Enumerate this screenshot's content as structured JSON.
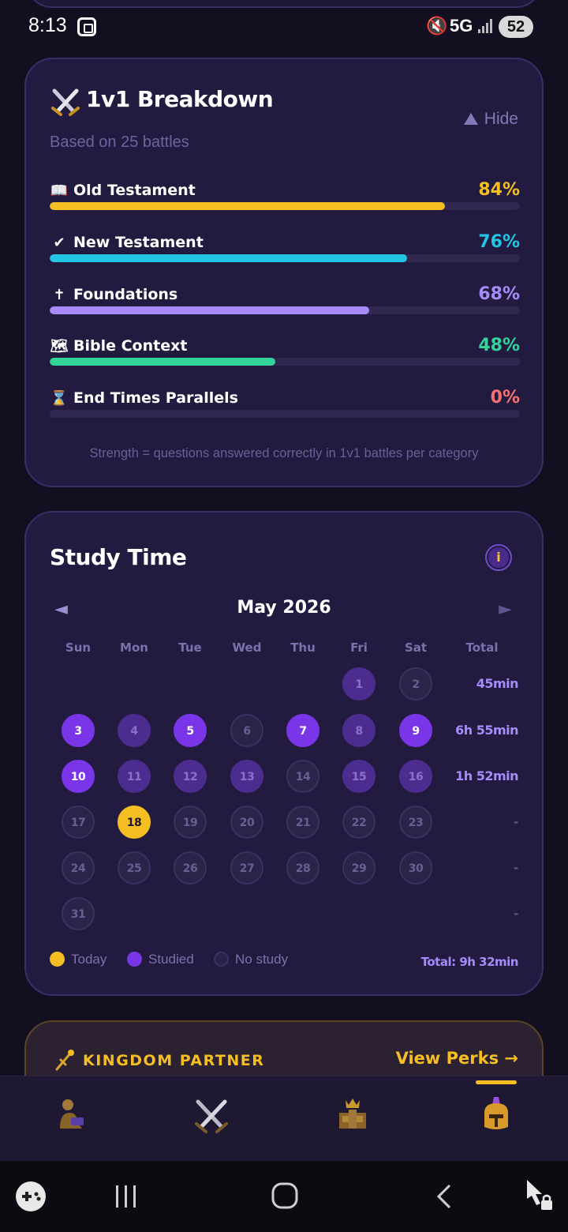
{
  "status_bar": {
    "time": "8:13",
    "network": "5G",
    "battery": "52"
  },
  "breakdown": {
    "title": "1v1 Breakdown",
    "hide_label": "Hide",
    "subtitle": "Based on 25 battles",
    "categories": [
      {
        "icon": "📖",
        "label": "Old Testament",
        "percent": "84%",
        "value": 84,
        "color": "#f5be22"
      },
      {
        "icon": "✔",
        "label": "New Testament",
        "percent": "76%",
        "value": 76,
        "color": "#22c5e4"
      },
      {
        "icon": "✝",
        "label": "Foundations",
        "percent": "68%",
        "value": 68,
        "color": "#a78bfa"
      },
      {
        "icon": "🗺",
        "label": "Bible Context",
        "percent": "48%",
        "value": 48,
        "color": "#34d399"
      },
      {
        "icon": "⌛",
        "label": "End Times Parallels",
        "percent": "0%",
        "value": 0,
        "color": "#f87171"
      }
    ],
    "footnote": "Strength = questions answered correctly in 1v1 battles per category"
  },
  "study": {
    "title": "Study Time",
    "info_icon": "i",
    "prev_arrow": "◄",
    "next_arrow": "►",
    "month": "May 2026",
    "weekdays": [
      "Sun",
      "Mon",
      "Tue",
      "Wed",
      "Thu",
      "Fri",
      "Sat",
      "Total"
    ],
    "weeks": [
      {
        "days": [
          null,
          null,
          null,
          null,
          null,
          {
            "n": "1",
            "s": "light"
          },
          {
            "n": "2",
            "s": "none"
          }
        ],
        "total": "45min"
      },
      {
        "days": [
          {
            "n": "3",
            "s": "strong"
          },
          {
            "n": "4",
            "s": "light"
          },
          {
            "n": "5",
            "s": "strong"
          },
          {
            "n": "6",
            "s": "none"
          },
          {
            "n": "7",
            "s": "strong"
          },
          {
            "n": "8",
            "s": "light"
          },
          {
            "n": "9",
            "s": "strong"
          }
        ],
        "total": "6h 55min"
      },
      {
        "days": [
          {
            "n": "10",
            "s": "strong"
          },
          {
            "n": "11",
            "s": "light"
          },
          {
            "n": "12",
            "s": "light"
          },
          {
            "n": "13",
            "s": "light"
          },
          {
            "n": "14",
            "s": "none"
          },
          {
            "n": "15",
            "s": "light"
          },
          {
            "n": "16",
            "s": "light"
          }
        ],
        "total": "1h 52min"
      },
      {
        "days": [
          {
            "n": "17",
            "s": "none"
          },
          {
            "n": "18",
            "s": "today"
          },
          {
            "n": "19",
            "s": "none"
          },
          {
            "n": "20",
            "s": "none"
          },
          {
            "n": "21",
            "s": "none"
          },
          {
            "n": "22",
            "s": "none"
          },
          {
            "n": "23",
            "s": "none"
          }
        ],
        "total": "-"
      },
      {
        "days": [
          {
            "n": "24",
            "s": "none"
          },
          {
            "n": "25",
            "s": "none"
          },
          {
            "n": "26",
            "s": "none"
          },
          {
            "n": "27",
            "s": "none"
          },
          {
            "n": "28",
            "s": "none"
          },
          {
            "n": "29",
            "s": "none"
          },
          {
            "n": "30",
            "s": "none"
          }
        ],
        "total": "-"
      },
      {
        "days": [
          {
            "n": "31",
            "s": "none"
          },
          null,
          null,
          null,
          null,
          null,
          null
        ],
        "total": "-"
      }
    ],
    "legend": [
      {
        "label": "Today",
        "color": "#f5be22"
      },
      {
        "label": "Studied",
        "color": "#7b35e8"
      },
      {
        "label": "No study",
        "color": "#2b2348"
      }
    ],
    "grand_total": "Total: 9h 32min"
  },
  "partner": {
    "title": "KINGDOM PARTNER",
    "link": "View Perks →"
  },
  "nav": {
    "items": [
      "reading-icon",
      "battle-icon",
      "kingdom-icon",
      "profile-icon"
    ],
    "active": 3
  }
}
